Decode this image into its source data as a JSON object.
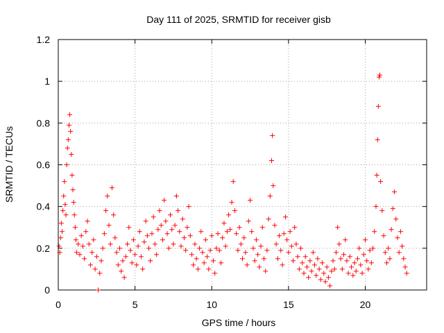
{
  "chart_data": {
    "type": "scatter",
    "title": "Day 111 of 2025, SRMTID for receiver gisb",
    "xlabel": "GPS time / hours",
    "ylabel": "SRMTID / TECUs",
    "xlim": [
      0,
      24
    ],
    "ylim": [
      0,
      1.2
    ],
    "xticks": [
      0,
      5,
      10,
      15,
      20
    ],
    "yticks": [
      0,
      0.2,
      0.4,
      0.6,
      0.8,
      1,
      1.2
    ],
    "xtick_labels": [
      "0",
      "5",
      "10",
      "15",
      "20"
    ],
    "ytick_labels": [
      "0",
      "0.2",
      "0.4",
      "0.6",
      "0.8",
      "1",
      "1.2"
    ],
    "grid": true,
    "marker": "+",
    "marker_color": "#ff0000",
    "series": [
      {
        "name": "SRMTID",
        "points": [
          [
            0.05,
            0.21
          ],
          [
            0.1,
            0.18
          ],
          [
            0.15,
            0.25
          ],
          [
            0.2,
            0.32
          ],
          [
            0.25,
            0.28
          ],
          [
            0.3,
            0.38
          ],
          [
            0.35,
            0.45
          ],
          [
            0.4,
            0.52
          ],
          [
            0.45,
            0.41
          ],
          [
            0.5,
            0.36
          ],
          [
            0.55,
            0.6
          ],
          [
            0.6,
            0.68
          ],
          [
            0.65,
            0.72
          ],
          [
            0.7,
            0.79
          ],
          [
            0.75,
            0.84
          ],
          [
            0.8,
            0.76
          ],
          [
            0.85,
            0.65
          ],
          [
            0.9,
            0.55
          ],
          [
            0.95,
            0.48
          ],
          [
            1.0,
            0.42
          ],
          [
            1.05,
            0.36
          ],
          [
            1.1,
            0.3
          ],
          [
            1.15,
            0.24
          ],
          [
            1.2,
            0.18
          ],
          [
            1.3,
            0.22
          ],
          [
            1.4,
            0.17
          ],
          [
            1.5,
            0.26
          ],
          [
            1.6,
            0.21
          ],
          [
            1.7,
            0.15
          ],
          [
            1.8,
            0.28
          ],
          [
            1.9,
            0.33
          ],
          [
            2.0,
            0.22
          ],
          [
            2.1,
            0.12
          ],
          [
            2.2,
            0.18
          ],
          [
            2.3,
            0.24
          ],
          [
            2.4,
            0.1
          ],
          [
            2.5,
            0.16
          ],
          [
            2.6,
            0.0
          ],
          [
            2.7,
            0.08
          ],
          [
            2.8,
            0.14
          ],
          [
            2.9,
            0.2
          ],
          [
            3.0,
            0.27
          ],
          [
            3.1,
            0.38
          ],
          [
            3.2,
            0.45
          ],
          [
            3.3,
            0.31
          ],
          [
            3.4,
            0.22
          ],
          [
            3.5,
            0.49
          ],
          [
            3.6,
            0.36
          ],
          [
            3.7,
            0.25
          ],
          [
            3.8,
            0.18
          ],
          [
            3.9,
            0.12
          ],
          [
            4.0,
            0.2
          ],
          [
            4.1,
            0.09
          ],
          [
            4.2,
            0.14
          ],
          [
            4.3,
            0.06
          ],
          [
            4.4,
            0.16
          ],
          [
            4.5,
            0.22
          ],
          [
            4.6,
            0.3
          ],
          [
            4.7,
            0.19
          ],
          [
            4.8,
            0.13
          ],
          [
            4.9,
            0.24
          ],
          [
            5.0,
            0.17
          ],
          [
            5.1,
            0.12
          ],
          [
            5.2,
            0.21
          ],
          [
            5.3,
            0.28
          ],
          [
            5.4,
            0.16
          ],
          [
            5.5,
            0.1
          ],
          [
            5.6,
            0.23
          ],
          [
            5.7,
            0.33
          ],
          [
            5.8,
            0.26
          ],
          [
            5.9,
            0.2
          ],
          [
            6.0,
            0.14
          ],
          [
            6.1,
            0.27
          ],
          [
            6.2,
            0.35
          ],
          [
            6.3,
            0.22
          ],
          [
            6.4,
            0.17
          ],
          [
            6.5,
            0.29
          ],
          [
            6.6,
            0.38
          ],
          [
            6.7,
            0.31
          ],
          [
            6.8,
            0.24
          ],
          [
            6.9,
            0.43
          ],
          [
            7.0,
            0.33
          ],
          [
            7.1,
            0.27
          ],
          [
            7.2,
            0.2
          ],
          [
            7.3,
            0.36
          ],
          [
            7.4,
            0.29
          ],
          [
            7.5,
            0.22
          ],
          [
            7.6,
            0.31
          ],
          [
            7.7,
            0.45
          ],
          [
            7.8,
            0.38
          ],
          [
            7.9,
            0.28
          ],
          [
            8.0,
            0.21
          ],
          [
            8.1,
            0.34
          ],
          [
            8.2,
            0.25
          ],
          [
            8.3,
            0.19
          ],
          [
            8.4,
            0.3
          ],
          [
            8.5,
            0.4
          ],
          [
            8.6,
            0.26
          ],
          [
            8.7,
            0.17
          ],
          [
            8.8,
            0.12
          ],
          [
            8.9,
            0.22
          ],
          [
            9.0,
            0.15
          ],
          [
            9.1,
            0.1
          ],
          [
            9.2,
            0.2
          ],
          [
            9.3,
            0.28
          ],
          [
            9.4,
            0.18
          ],
          [
            9.5,
            0.13
          ],
          [
            9.6,
            0.24
          ],
          [
            9.7,
            0.16
          ],
          [
            9.8,
            0.1
          ],
          [
            9.9,
            0.19
          ],
          [
            10.0,
            0.26
          ],
          [
            10.1,
            0.14
          ],
          [
            10.2,
            0.08
          ],
          [
            10.3,
            0.2
          ],
          [
            10.4,
            0.27
          ],
          [
            10.5,
            0.19
          ],
          [
            10.6,
            0.13
          ],
          [
            10.7,
            0.25
          ],
          [
            10.8,
            0.32
          ],
          [
            10.9,
            0.21
          ],
          [
            11.0,
            0.28
          ],
          [
            11.1,
            0.36
          ],
          [
            11.2,
            0.29
          ],
          [
            11.3,
            0.42
          ],
          [
            11.4,
            0.52
          ],
          [
            11.5,
            0.38
          ],
          [
            11.6,
            0.27
          ],
          [
            11.7,
            0.19
          ],
          [
            11.8,
            0.3
          ],
          [
            11.9,
            0.22
          ],
          [
            12.0,
            0.15
          ],
          [
            12.1,
            0.25
          ],
          [
            12.2,
            0.18
          ],
          [
            12.3,
            0.12
          ],
          [
            12.4,
            0.33
          ],
          [
            12.5,
            0.43
          ],
          [
            12.6,
            0.28
          ],
          [
            12.7,
            0.2
          ],
          [
            12.8,
            0.14
          ],
          [
            12.9,
            0.24
          ],
          [
            13.0,
            0.17
          ],
          [
            13.1,
            0.11
          ],
          [
            13.2,
            0.21
          ],
          [
            13.3,
            0.3
          ],
          [
            13.4,
            0.15
          ],
          [
            13.5,
            0.09
          ],
          [
            13.6,
            0.19
          ],
          [
            13.7,
            0.34
          ],
          [
            13.8,
            0.45
          ],
          [
            13.9,
            0.62
          ],
          [
            13.95,
            0.74
          ],
          [
            14.0,
            0.5
          ],
          [
            14.1,
            0.31
          ],
          [
            14.2,
            0.22
          ],
          [
            14.3,
            0.15
          ],
          [
            14.4,
            0.26
          ],
          [
            14.5,
            0.19
          ],
          [
            14.6,
            0.12
          ],
          [
            14.7,
            0.27
          ],
          [
            14.8,
            0.35
          ],
          [
            14.9,
            0.24
          ],
          [
            15.0,
            0.18
          ],
          [
            15.1,
            0.28
          ],
          [
            15.2,
            0.21
          ],
          [
            15.3,
            0.14
          ],
          [
            15.4,
            0.3
          ],
          [
            15.5,
            0.22
          ],
          [
            15.6,
            0.16
          ],
          [
            15.7,
            0.1
          ],
          [
            15.8,
            0.2
          ],
          [
            15.9,
            0.13
          ],
          [
            16.0,
            0.08
          ],
          [
            16.1,
            0.16
          ],
          [
            16.2,
            0.11
          ],
          [
            16.3,
            0.06
          ],
          [
            16.4,
            0.14
          ],
          [
            16.5,
            0.09
          ],
          [
            16.6,
            0.18
          ],
          [
            16.7,
            0.12
          ],
          [
            16.8,
            0.07
          ],
          [
            16.9,
            0.15
          ],
          [
            17.0,
            0.1
          ],
          [
            17.1,
            0.05
          ],
          [
            17.2,
            0.13
          ],
          [
            17.3,
            0.08
          ],
          [
            17.4,
            0.04
          ],
          [
            17.5,
            0.11
          ],
          [
            17.6,
            0.06
          ],
          [
            17.7,
            0.02
          ],
          [
            17.8,
            0.09
          ],
          [
            17.9,
            0.14
          ],
          [
            18.0,
            0.1
          ],
          [
            18.1,
            0.18
          ],
          [
            18.2,
            0.3
          ],
          [
            18.3,
            0.22
          ],
          [
            18.4,
            0.15
          ],
          [
            18.5,
            0.1
          ],
          [
            18.6,
            0.17
          ],
          [
            18.7,
            0.24
          ],
          [
            18.8,
            0.14
          ],
          [
            18.9,
            0.08
          ],
          [
            19.0,
            0.16
          ],
          [
            19.1,
            0.11
          ],
          [
            19.2,
            0.07
          ],
          [
            19.3,
            0.13
          ],
          [
            19.4,
            0.09
          ],
          [
            19.5,
            0.15
          ],
          [
            19.6,
            0.2
          ],
          [
            19.7,
            0.12
          ],
          [
            19.8,
            0.08
          ],
          [
            19.9,
            0.17
          ],
          [
            20.0,
            0.24
          ],
          [
            20.1,
            0.14
          ],
          [
            20.2,
            0.1
          ],
          [
            20.3,
            0.19
          ],
          [
            20.4,
            0.13
          ],
          [
            20.5,
            0.2
          ],
          [
            20.6,
            0.28
          ],
          [
            20.7,
            0.4
          ],
          [
            20.75,
            0.55
          ],
          [
            20.8,
            0.72
          ],
          [
            20.85,
            0.88
          ],
          [
            20.9,
            1.02
          ],
          [
            20.95,
            1.03
          ],
          [
            21.0,
            0.52
          ],
          [
            21.1,
            0.38
          ],
          [
            21.2,
            0.26
          ],
          [
            21.3,
            0.18
          ],
          [
            21.4,
            0.13
          ],
          [
            21.5,
            0.2
          ],
          [
            21.6,
            0.15
          ],
          [
            21.7,
            0.29
          ],
          [
            21.8,
            0.39
          ],
          [
            21.9,
            0.47
          ],
          [
            22.0,
            0.34
          ],
          [
            22.1,
            0.25
          ],
          [
            22.2,
            0.18
          ],
          [
            22.3,
            0.28
          ],
          [
            22.4,
            0.21
          ],
          [
            22.5,
            0.15
          ],
          [
            22.6,
            0.11
          ],
          [
            22.7,
            0.08
          ]
        ]
      }
    ]
  }
}
